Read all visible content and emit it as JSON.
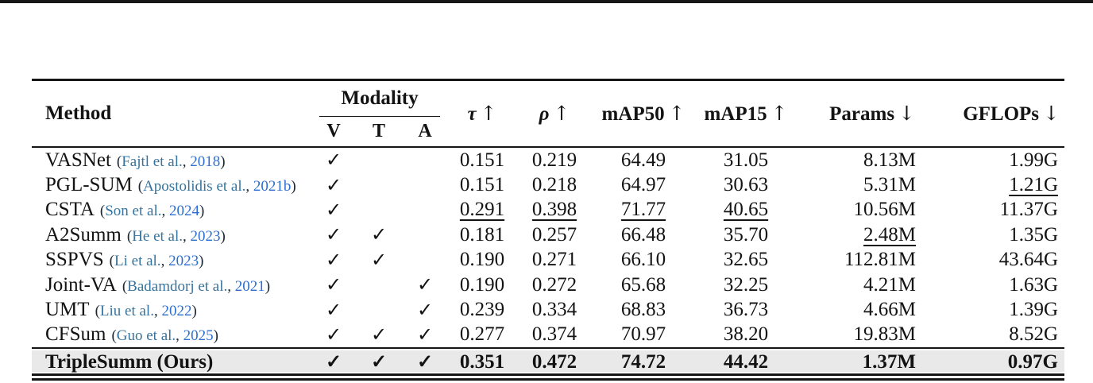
{
  "colors": {
    "rule": "#151515",
    "text": "#131313",
    "citation_author": "#36739e",
    "citation_year": "#2d6fd0",
    "highlight_bg": "#e9e9e9"
  },
  "table": {
    "headers": {
      "method": "Method",
      "modality_group": "Modality",
      "modality_cols": [
        "V",
        "T",
        "A"
      ],
      "metrics": [
        {
          "key": "tau",
          "label": "τ",
          "arrow": "↑",
          "italic": true
        },
        {
          "key": "rho",
          "label": "ρ",
          "arrow": "↑",
          "italic": true
        },
        {
          "key": "map50",
          "label": "mAP50",
          "arrow": "↑",
          "italic": false
        },
        {
          "key": "map15",
          "label": "mAP15",
          "arrow": "↑",
          "italic": false
        },
        {
          "key": "params",
          "label": "Params",
          "arrow": "↓",
          "italic": false
        },
        {
          "key": "gflops",
          "label": "GFLOPs",
          "arrow": "↓",
          "italic": false
        }
      ]
    },
    "checkmark": "✓",
    "rows": [
      {
        "method": "VASNet",
        "cit_author": "Fajtl et al.",
        "cit_year": "2018",
        "v": true,
        "t": false,
        "a": false,
        "tau": "0.151",
        "rho": "0.219",
        "map50": "64.49",
        "map15": "31.05",
        "params": "8.13M",
        "gflops": "1.99G",
        "underline": []
      },
      {
        "method": "PGL-SUM",
        "cit_author": "Apostolidis et al.",
        "cit_year": "2021b",
        "v": true,
        "t": false,
        "a": false,
        "tau": "0.151",
        "rho": "0.218",
        "map50": "64.97",
        "map15": "30.63",
        "params": "5.31M",
        "gflops": "1.21G",
        "underline": [
          "gflops"
        ]
      },
      {
        "method": "CSTA",
        "cit_author": "Son et al.",
        "cit_year": "2024",
        "v": true,
        "t": false,
        "a": false,
        "tau": "0.291",
        "rho": "0.398",
        "map50": "71.77",
        "map15": "40.65",
        "params": "10.56M",
        "gflops": "11.37G",
        "underline": [
          "tau",
          "rho",
          "map50",
          "map15"
        ]
      },
      {
        "method": "A2Summ",
        "cit_author": "He et al.",
        "cit_year": "2023",
        "v": true,
        "t": true,
        "a": false,
        "tau": "0.181",
        "rho": "0.257",
        "map50": "66.48",
        "map15": "35.70",
        "params": "2.48M",
        "gflops": "1.35G",
        "underline": [
          "params"
        ]
      },
      {
        "method": "SSPVS",
        "cit_author": "Li et al.",
        "cit_year": "2023",
        "v": true,
        "t": true,
        "a": false,
        "tau": "0.190",
        "rho": "0.271",
        "map50": "66.10",
        "map15": "32.65",
        "params": "112.81M",
        "gflops": "43.64G",
        "underline": []
      },
      {
        "method": "Joint-VA",
        "cit_author": "Badamdorj et al.",
        "cit_year": "2021",
        "v": true,
        "t": false,
        "a": true,
        "tau": "0.190",
        "rho": "0.272",
        "map50": "65.68",
        "map15": "32.25",
        "params": "4.21M",
        "gflops": "1.63G",
        "underline": []
      },
      {
        "method": "UMT",
        "cit_author": "Liu et al.",
        "cit_year": "2022",
        "v": true,
        "t": false,
        "a": true,
        "tau": "0.239",
        "rho": "0.334",
        "map50": "68.83",
        "map15": "36.73",
        "params": "4.66M",
        "gflops": "1.39G",
        "underline": []
      },
      {
        "method": "CFSum",
        "cit_author": "Guo et al.",
        "cit_year": "2025",
        "v": true,
        "t": true,
        "a": true,
        "tau": "0.277",
        "rho": "0.374",
        "map50": "70.97",
        "map15": "38.20",
        "params": "19.83M",
        "gflops": "8.52G",
        "underline": []
      }
    ],
    "ours_row": {
      "method": "TripleSumm (Ours)",
      "cit_author": "",
      "cit_year": "",
      "v": true,
      "t": true,
      "a": true,
      "tau": "0.351",
      "rho": "0.472",
      "map50": "74.72",
      "map15": "44.42",
      "params": "1.37M",
      "gflops": "0.97G",
      "underline": []
    }
  }
}
